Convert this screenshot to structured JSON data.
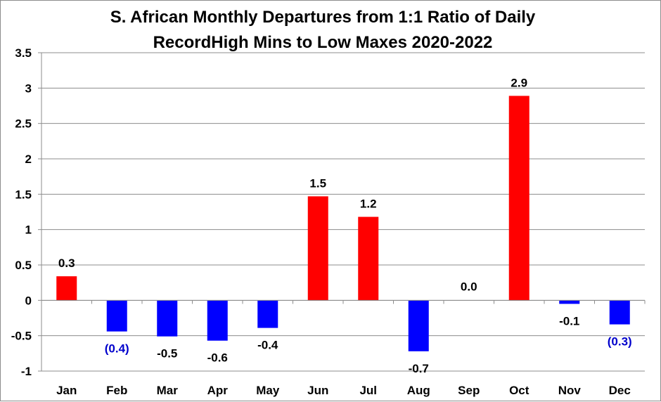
{
  "chart_data": {
    "type": "bar",
    "title_lines": [
      "S. African Monthly Departures from 1:1 Ratio of Daily",
      "RecordHigh Mins to Low Maxes 2020-2022"
    ],
    "xlabel": "",
    "ylabel": "",
    "ylim": [
      -1,
      3.5
    ],
    "yticks": [
      3.5,
      3,
      2.5,
      2,
      1.5,
      1,
      0.5,
      0,
      -0.5,
      -1
    ],
    "ytick_labels": [
      "3.5",
      "3",
      "2.5",
      "2",
      "1.5",
      "1",
      "0.5",
      "0",
      "-0.5",
      "-1"
    ],
    "grid": true,
    "legend": "none",
    "categories": [
      "Jan",
      "Feb",
      "Mar",
      "Apr",
      "May",
      "Jun",
      "Jul",
      "Aug",
      "Sep",
      "Oct",
      "Nov",
      "Dec"
    ],
    "values": [
      0.34,
      -0.44,
      -0.51,
      -0.57,
      -0.39,
      1.47,
      1.18,
      -0.72,
      0.0,
      2.89,
      -0.05,
      -0.34
    ],
    "data_labels": [
      "0.3",
      "(0.4)",
      "-0.5",
      "-0.6",
      "-0.4",
      "1.5",
      "1.2",
      "-0.7",
      "0.0",
      "2.9",
      "-0.1",
      "(0.3)"
    ],
    "data_label_colors": [
      "#000000",
      "#0000cc",
      "#000000",
      "#000000",
      "#000000",
      "#000000",
      "#000000",
      "#000000",
      "#000000",
      "#000000",
      "#000000",
      "#0000cc"
    ],
    "colors": {
      "positive": "#ff0000",
      "negative": "#0000ff",
      "gridline": "#8c8c8c",
      "axis": "#8c8c8c"
    }
  }
}
